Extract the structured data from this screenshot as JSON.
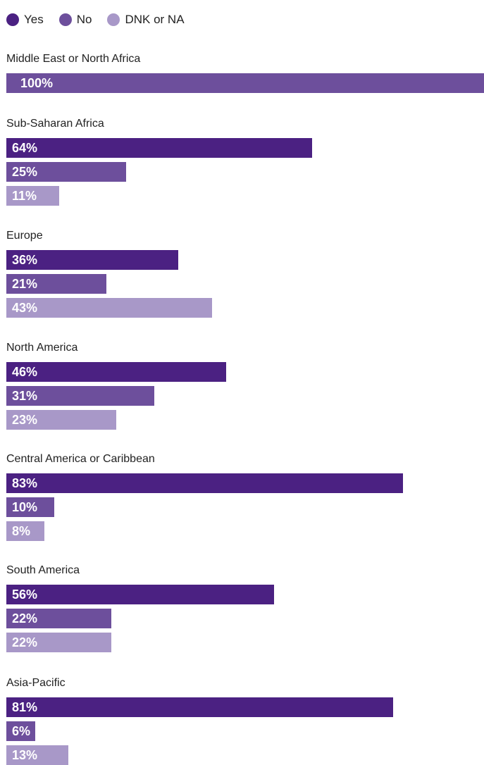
{
  "chart_data": {
    "type": "bar",
    "orientation": "horizontal",
    "title": "",
    "xlabel": "",
    "ylabel": "",
    "xlim": [
      0,
      100
    ],
    "unit": "%",
    "legend": {
      "placement": "top-left",
      "entries": [
        {
          "name": "Yes",
          "color": "#4b2182"
        },
        {
          "name": "No",
          "color": "#6d4f9c"
        },
        {
          "name": "DNK or NA",
          "color": "#a898c8"
        }
      ]
    },
    "groups": [
      {
        "region": "Middle East or North Africa",
        "bars": [
          {
            "series": "No",
            "value": 100,
            "label": "100%"
          }
        ]
      },
      {
        "region": "Sub-Saharan Africa",
        "bars": [
          {
            "series": "Yes",
            "value": 64,
            "label": "64%"
          },
          {
            "series": "No",
            "value": 25,
            "label": "25%"
          },
          {
            "series": "DNK or NA",
            "value": 11,
            "label": "11%"
          }
        ]
      },
      {
        "region": "Europe",
        "bars": [
          {
            "series": "Yes",
            "value": 36,
            "label": "36%"
          },
          {
            "series": "No",
            "value": 21,
            "label": "21%"
          },
          {
            "series": "DNK or NA",
            "value": 43,
            "label": "43%"
          }
        ]
      },
      {
        "region": "North America",
        "bars": [
          {
            "series": "Yes",
            "value": 46,
            "label": "46%"
          },
          {
            "series": "No",
            "value": 31,
            "label": "31%"
          },
          {
            "series": "DNK or NA",
            "value": 23,
            "label": "23%"
          }
        ]
      },
      {
        "region": "Central America or Caribbean",
        "bars": [
          {
            "series": "Yes",
            "value": 83,
            "label": "83%"
          },
          {
            "series": "No",
            "value": 10,
            "label": "10%"
          },
          {
            "series": "DNK or NA",
            "value": 8,
            "label": "8%"
          }
        ]
      },
      {
        "region": "South America",
        "bars": [
          {
            "series": "Yes",
            "value": 56,
            "label": "56%"
          },
          {
            "series": "No",
            "value": 22,
            "label": "22%"
          },
          {
            "series": "DNK or NA",
            "value": 22,
            "label": "22%"
          }
        ]
      },
      {
        "region": "Asia-Pacific",
        "bars": [
          {
            "series": "Yes",
            "value": 81,
            "label": "81%"
          },
          {
            "series": "No",
            "value": 6,
            "label": "6%"
          },
          {
            "series": "DNK or NA",
            "value": 13,
            "label": "13%"
          }
        ]
      }
    ]
  }
}
